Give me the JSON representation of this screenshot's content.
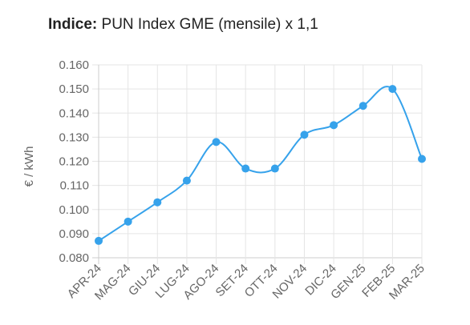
{
  "header": {
    "label": "Indice:",
    "text": "PUN Index GME (mensile) x 1,1"
  },
  "chart_data": {
    "type": "line",
    "title": "Indice: PUN Index GME (mensile) x 1,1",
    "xlabel": "",
    "ylabel": "€ / kWh",
    "categories": [
      "APR-24",
      "MAG-24",
      "GIU-24",
      "LUG-24",
      "AGO-24",
      "SET-24",
      "OTT-24",
      "NOV-24",
      "DIC-24",
      "GEN-25",
      "FEB-25",
      "MAR-25"
    ],
    "series": [
      {
        "values": [
          0.087,
          0.095,
          0.103,
          0.112,
          0.128,
          0.117,
          0.117,
          0.131,
          0.135,
          0.143,
          0.15,
          0.121
        ]
      }
    ],
    "ylim": [
      0.08,
      0.16
    ],
    "yticks": [
      "0.160",
      "0.150",
      "0.140",
      "0.130",
      "0.120",
      "0.110",
      "0.100",
      "0.090",
      "0.080"
    ],
    "grid": true,
    "colors": {
      "line": "#36a2eb",
      "point": "#36a2eb",
      "grid": "#e5e5e5",
      "axis": "#cccccc"
    }
  }
}
